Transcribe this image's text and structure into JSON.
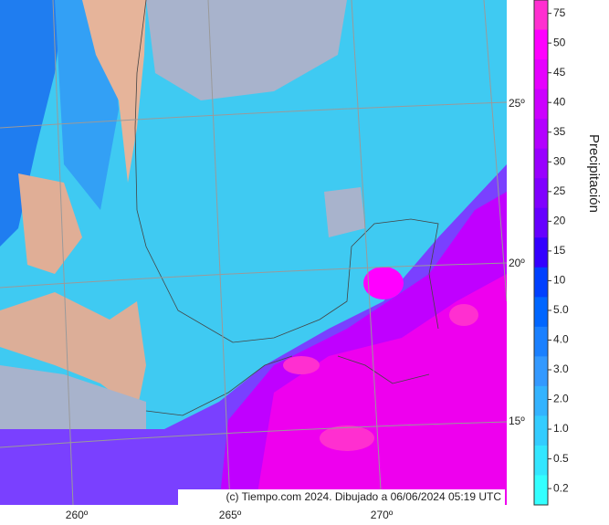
{
  "map": {
    "latitude_labels": [
      "25º",
      "20º",
      "15º"
    ],
    "longitude_labels": [
      "260º",
      "265º",
      "270º"
    ],
    "credit": "(c) Tiempo.com 2024. Dibujado a 06/06/2024 05:19 UTC"
  },
  "legend": {
    "title": "Precipitación",
    "levels": [
      {
        "label": "75",
        "color": "#ff2fd0"
      },
      {
        "label": "50",
        "color": "#ff00ff"
      },
      {
        "label": "45",
        "color": "#e600ff"
      },
      {
        "label": "40",
        "color": "#cc00ff"
      },
      {
        "label": "35",
        "color": "#b300ff"
      },
      {
        "label": "30",
        "color": "#9900ff"
      },
      {
        "label": "25",
        "color": "#8000ff"
      },
      {
        "label": "20",
        "color": "#6600ff"
      },
      {
        "label": "15",
        "color": "#3300ff"
      },
      {
        "label": "10",
        "color": "#0040ff"
      },
      {
        "label": "5.0",
        "color": "#0066ff"
      },
      {
        "label": "4.0",
        "color": "#1a80ff"
      },
      {
        "label": "3.0",
        "color": "#3399ff"
      },
      {
        "label": "2.0",
        "color": "#33b3ff"
      },
      {
        "label": "1.0",
        "color": "#33ccff"
      },
      {
        "label": "0.5",
        "color": "#33e6ff"
      },
      {
        "label": "0.2",
        "color": "#33ffff"
      }
    ]
  }
}
